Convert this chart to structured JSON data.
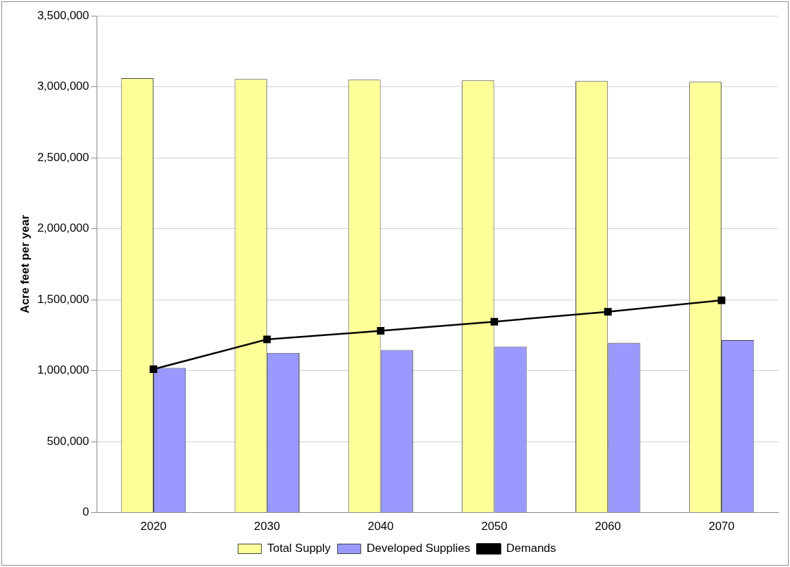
{
  "chart_data": {
    "type": "bar",
    "ylabel": "Acre feet per year",
    "categories": [
      "2020",
      "2030",
      "2040",
      "2050",
      "2060",
      "2070"
    ],
    "series": [
      {
        "name": "Total Supply",
        "color": "#ffff99",
        "values": [
          3060000,
          3055000,
          3050000,
          3045000,
          3040000,
          3035000
        ]
      },
      {
        "name": "Developed Supplies",
        "color": "#9999ff",
        "values": [
          1020000,
          1125000,
          1145000,
          1170000,
          1195000,
          1215000
        ]
      },
      {
        "name": "Demands",
        "type": "line",
        "color": "#000000",
        "values": [
          1010000,
          1220000,
          1280000,
          1345000,
          1415000,
          1495000
        ]
      }
    ],
    "ylim": [
      0,
      3500000
    ],
    "yticks": [
      0,
      {
        "value": 500000,
        "label": "500,000"
      },
      {
        "value": 1000000,
        "label": "1,000,000"
      },
      {
        "value": 1500000,
        "label": "1,500,000"
      },
      {
        "value": 2000000,
        "label": "2,000,000"
      },
      {
        "value": 2500000,
        "label": "2,500,000"
      },
      {
        "value": 3000000,
        "label": "3,000,000"
      },
      {
        "value": 3500000,
        "label": "3,500,000"
      }
    ],
    "grid": "y",
    "legend": "bottom",
    "marker": "square",
    "line_style": "solid"
  }
}
